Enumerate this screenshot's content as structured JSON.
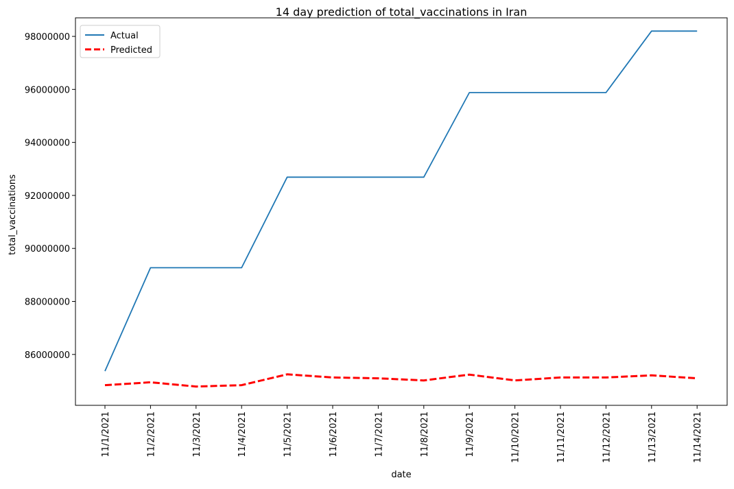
{
  "chart_data": {
    "type": "line",
    "title": "14 day prediction of total_vaccinations in Iran",
    "xlabel": "date",
    "ylabel": "total_vaccinations",
    "categories": [
      "11/1/2021",
      "11/2/2021",
      "11/3/2021",
      "11/4/2021",
      "11/5/2021",
      "11/6/2021",
      "11/7/2021",
      "11/8/2021",
      "11/9/2021",
      "11/10/2021",
      "11/11/2021",
      "11/12/2021",
      "11/13/2021",
      "11/14/2021"
    ],
    "yticks": [
      86000000,
      88000000,
      90000000,
      92000000,
      94000000,
      96000000,
      98000000
    ],
    "ylim": [
      84080000,
      98700000
    ],
    "legend_position": "top-left",
    "series": [
      {
        "name": "Actual",
        "color": "#1f77b4",
        "style": "solid",
        "values": [
          85370000,
          89270000,
          89270000,
          89270000,
          92690000,
          92690000,
          92690000,
          92690000,
          95880000,
          95880000,
          95880000,
          95880000,
          98200000,
          98200000
        ]
      },
      {
        "name": "Predicted",
        "color": "#ff0000",
        "style": "dashed",
        "values": [
          84840000,
          84950000,
          84790000,
          84840000,
          85250000,
          85130000,
          85100000,
          85020000,
          85240000,
          85020000,
          85130000,
          85130000,
          85210000,
          85100000
        ]
      }
    ]
  }
}
